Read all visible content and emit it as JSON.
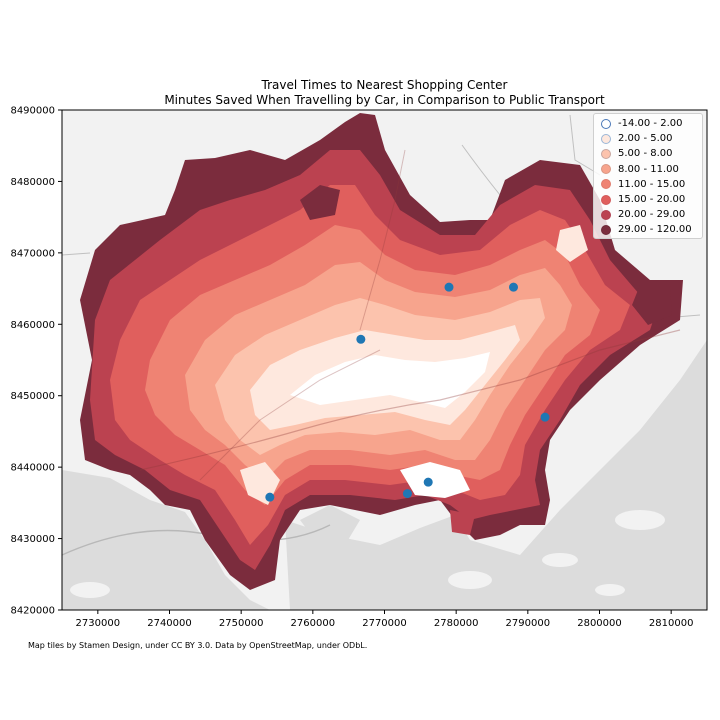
{
  "title": {
    "line1": "Travel Times to Nearest Shopping Center",
    "line2": "Minutes Saved When Travelling by Car, in Comparison to Public Transport"
  },
  "attribution": "Map tiles by Stamen Design, under CC BY 3.0. Data by OpenStreetMap, under ODbL.",
  "chart_data": {
    "type": "choropleth-map",
    "xlim": [
      2725000,
      2815000
    ],
    "ylim": [
      8420000,
      8490000
    ],
    "x_ticks": [
      2730000,
      2740000,
      2750000,
      2760000,
      2770000,
      2780000,
      2790000,
      2800000,
      2810000
    ],
    "y_ticks": [
      8420000,
      8430000,
      8440000,
      8450000,
      8460000,
      8470000,
      8480000,
      8490000
    ],
    "x_tick_labels": [
      "2730000",
      "2740000",
      "2750000",
      "2760000",
      "2770000",
      "2780000",
      "2790000",
      "2800000",
      "2810000"
    ],
    "y_tick_labels": [
      "8420000",
      "8430000",
      "8440000",
      "8450000",
      "8460000",
      "8470000",
      "8480000",
      "8490000"
    ],
    "legend_placement": "top-right",
    "legend": [
      {
        "label": "-14.00 - 2.00",
        "color": "#ffffff",
        "border": "#4a78b8"
      },
      {
        "label": "2.00 - 5.00",
        "color": "#fee8de",
        "border": "#9bb6d6"
      },
      {
        "label": "5.00 - 8.00",
        "color": "#fcc3ad",
        "border": "#c8a7a0"
      },
      {
        "label": "8.00 - 11.00",
        "color": "#f7a48d",
        "border": "#d99784"
      },
      {
        "label": "11.00 - 15.00",
        "color": "#ef8373",
        "border": "#e07b6c"
      },
      {
        "label": "15.00 - 20.00",
        "color": "#e05f5d",
        "border": "#d2595a"
      },
      {
        "label": "20.00 - 29.00",
        "color": "#bb4250",
        "border": "#b04050"
      },
      {
        "label": "29.00 - 120.00",
        "color": "#7b2c3d",
        "border": "#6e2838"
      }
    ],
    "shopping_centers": [
      {
        "x": 2754000,
        "y": 8435800
      },
      {
        "x": 2766700,
        "y": 8457900
      },
      {
        "x": 2773200,
        "y": 8436300
      },
      {
        "x": 2776100,
        "y": 8437900
      },
      {
        "x": 2779000,
        "y": 8465200
      },
      {
        "x": 2788000,
        "y": 8465200
      },
      {
        "x": 2792400,
        "y": 8447000
      }
    ],
    "marker_color": "#1f77b4"
  }
}
